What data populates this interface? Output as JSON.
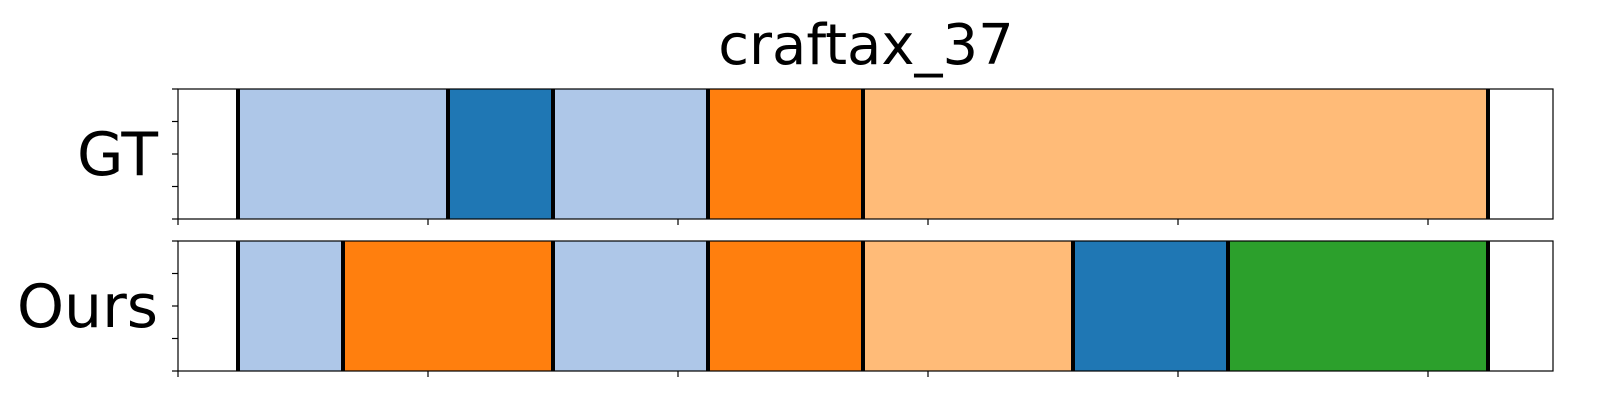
{
  "chart_data": {
    "type": "segmentation",
    "title": "craftax_37",
    "x_range": [
      0,
      275
    ],
    "x_ticks": [
      0,
      50,
      100,
      150,
      200,
      250
    ],
    "rows": [
      {
        "label": "GT",
        "segments": [
          {
            "start": 12,
            "end": 54,
            "color": "#aec7e8"
          },
          {
            "start": 54,
            "end": 75,
            "color": "#1f77b4"
          },
          {
            "start": 75,
            "end": 106,
            "color": "#aec7e8"
          },
          {
            "start": 106,
            "end": 137,
            "color": "#ff7f0e"
          },
          {
            "start": 137,
            "end": 262,
            "color": "#ffbb78"
          }
        ]
      },
      {
        "label": "Ours",
        "segments": [
          {
            "start": 12,
            "end": 33,
            "color": "#aec7e8"
          },
          {
            "start": 33,
            "end": 75,
            "color": "#ff7f0e"
          },
          {
            "start": 75,
            "end": 106,
            "color": "#aec7e8"
          },
          {
            "start": 106,
            "end": 137,
            "color": "#ff7f0e"
          },
          {
            "start": 137,
            "end": 179,
            "color": "#ffbb78"
          },
          {
            "start": 179,
            "end": 210,
            "color": "#1f77b4"
          },
          {
            "start": 210,
            "end": 262,
            "color": "#2ca02c"
          }
        ]
      }
    ]
  }
}
